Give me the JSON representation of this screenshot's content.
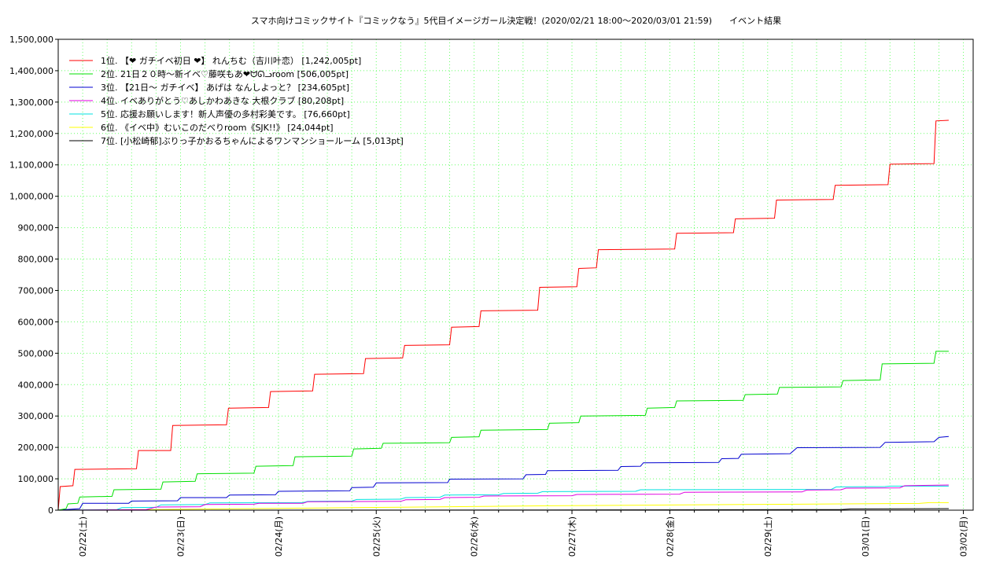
{
  "chart_data": {
    "type": "line",
    "title": "スマホ向けコミックサイト『コミックなう』5代目イメージガール決定戦！(2020/02/21 18:00〜2020/03/01 21:59)　　イベント結果",
    "xlabel": "",
    "ylabel": "",
    "x_range": [
      0,
      9.35
    ],
    "ylim": [
      0,
      1500000
    ],
    "y_ticks": [
      0,
      100000,
      200000,
      300000,
      400000,
      500000,
      600000,
      700000,
      800000,
      900000,
      1000000,
      1100000,
      1200000,
      1300000,
      1400000,
      1500000
    ],
    "y_tick_labels": [
      "0",
      "100,000",
      "200,000",
      "300,000",
      "400,000",
      "500,000",
      "600,000",
      "700,000",
      "800,000",
      "900,000",
      "1,000,000",
      "1,100,000",
      "1,200,000",
      "1,300,000",
      "1,400,000",
      "1,500,000"
    ],
    "x_ticks": [
      0.25,
      1.25,
      2.25,
      3.25,
      4.25,
      5.25,
      6.25,
      7.25,
      8.25,
      9.25
    ],
    "x_tick_labels": [
      "02/22(土)",
      "02/23(日)",
      "02/24(月)",
      "02/25(火)",
      "02/26(水)",
      "02/27(木)",
      "02/28(金)",
      "02/29(土)",
      "03/01(日)",
      "03/02(月)"
    ],
    "grid": true,
    "legend_position": "top-left",
    "series": [
      {
        "name": "1位. 【❤ ガチイベ初日 ❤】 れんちむ（吉川叶恋） [1,242,005pt]",
        "color": "#ff0000",
        "points": [
          [
            0,
            0
          ],
          [
            0.02,
            75000
          ],
          [
            0.15,
            78000
          ],
          [
            0.17,
            130000
          ],
          [
            0.8,
            132000
          ],
          [
            0.82,
            190000
          ],
          [
            1.15,
            190000
          ],
          [
            1.17,
            270000
          ],
          [
            1.72,
            272000
          ],
          [
            1.74,
            325000
          ],
          [
            2.15,
            327000
          ],
          [
            2.17,
            378000
          ],
          [
            2.6,
            380000
          ],
          [
            2.62,
            433000
          ],
          [
            3.12,
            435000
          ],
          [
            3.14,
            483000
          ],
          [
            3.52,
            485000
          ],
          [
            3.54,
            525000
          ],
          [
            4.0,
            527000
          ],
          [
            4.02,
            583000
          ],
          [
            4.3,
            585000
          ],
          [
            4.32,
            635000
          ],
          [
            4.9,
            637000
          ],
          [
            4.92,
            710000
          ],
          [
            5.3,
            712000
          ],
          [
            5.32,
            770000
          ],
          [
            5.5,
            772000
          ],
          [
            5.52,
            830000
          ],
          [
            6.3,
            832000
          ],
          [
            6.32,
            882000
          ],
          [
            6.9,
            884000
          ],
          [
            6.92,
            928000
          ],
          [
            7.32,
            930000
          ],
          [
            7.34,
            988000
          ],
          [
            7.92,
            990000
          ],
          [
            7.94,
            1035000
          ],
          [
            8.48,
            1037000
          ],
          [
            8.5,
            1102000
          ],
          [
            8.95,
            1104000
          ],
          [
            8.97,
            1240000
          ],
          [
            9.1,
            1242005
          ]
        ]
      },
      {
        "name": "2位. 21日２０時〜新イベ♡藤咲もあ❤ᗢᘏᓗroom [506,005pt]",
        "color": "#00e000",
        "points": [
          [
            0,
            0
          ],
          [
            0.08,
            5000
          ],
          [
            0.1,
            20000
          ],
          [
            0.2,
            22000
          ],
          [
            0.22,
            42000
          ],
          [
            0.55,
            44000
          ],
          [
            0.57,
            65000
          ],
          [
            1.05,
            67000
          ],
          [
            1.07,
            90000
          ],
          [
            1.4,
            92000
          ],
          [
            1.42,
            116000
          ],
          [
            2.0,
            118000
          ],
          [
            2.02,
            140000
          ],
          [
            2.4,
            142000
          ],
          [
            2.42,
            170000
          ],
          [
            3.0,
            172000
          ],
          [
            3.02,
            195000
          ],
          [
            3.3,
            197000
          ],
          [
            3.32,
            213000
          ],
          [
            4.0,
            215000
          ],
          [
            4.02,
            232000
          ],
          [
            4.3,
            234000
          ],
          [
            4.32,
            255000
          ],
          [
            5.0,
            257000
          ],
          [
            5.02,
            277000
          ],
          [
            5.32,
            279000
          ],
          [
            5.34,
            300000
          ],
          [
            6.0,
            302000
          ],
          [
            6.02,
            325000
          ],
          [
            6.3,
            327000
          ],
          [
            6.32,
            348000
          ],
          [
            7.0,
            350000
          ],
          [
            7.02,
            368000
          ],
          [
            7.35,
            370000
          ],
          [
            7.37,
            391000
          ],
          [
            8.0,
            393000
          ],
          [
            8.02,
            413000
          ],
          [
            8.4,
            415000
          ],
          [
            8.42,
            466000
          ],
          [
            8.95,
            468000
          ],
          [
            8.97,
            506005
          ],
          [
            9.1,
            506005
          ]
        ]
      },
      {
        "name": "3位. 【21日〜 ガチイベ】 あげは なんしよっと？ [234,605pt]",
        "color": "#0000d0",
        "points": [
          [
            0,
            0
          ],
          [
            0.22,
            5000
          ],
          [
            0.25,
            22000
          ],
          [
            0.72,
            22000
          ],
          [
            0.75,
            29000
          ],
          [
            1.22,
            30000
          ],
          [
            1.25,
            40000
          ],
          [
            1.72,
            40000
          ],
          [
            1.75,
            48000
          ],
          [
            2.22,
            49000
          ],
          [
            2.25,
            60000
          ],
          [
            2.98,
            62000
          ],
          [
            3.0,
            72000
          ],
          [
            3.22,
            73000
          ],
          [
            3.25,
            87000
          ],
          [
            3.98,
            88000
          ],
          [
            4.0,
            99000
          ],
          [
            4.75,
            100000
          ],
          [
            4.78,
            113000
          ],
          [
            4.98,
            114000
          ],
          [
            5.0,
            126000
          ],
          [
            5.72,
            127000
          ],
          [
            5.75,
            139000
          ],
          [
            5.95,
            140000
          ],
          [
            5.98,
            151000
          ],
          [
            6.75,
            152000
          ],
          [
            6.78,
            164000
          ],
          [
            6.95,
            165000
          ],
          [
            6.98,
            178000
          ],
          [
            7.48,
            180000
          ],
          [
            7.55,
            199000
          ],
          [
            8.4,
            200000
          ],
          [
            8.45,
            216000
          ],
          [
            8.95,
            218000
          ],
          [
            9.0,
            232000
          ],
          [
            9.1,
            234605
          ]
        ]
      },
      {
        "name": "4位. イベありがとう♡あしかわあきな 大根クラブ [80,208pt]",
        "color": "#e000e0",
        "points": [
          [
            0,
            0
          ],
          [
            0.9,
            2000
          ],
          [
            1.0,
            10000
          ],
          [
            1.45,
            11000
          ],
          [
            1.5,
            18000
          ],
          [
            2.0,
            19000
          ],
          [
            2.05,
            22000
          ],
          [
            2.5,
            22000
          ],
          [
            2.55,
            27000
          ],
          [
            3.5,
            28000
          ],
          [
            3.55,
            33000
          ],
          [
            3.9,
            34000
          ],
          [
            3.95,
            40000
          ],
          [
            4.3,
            41000
          ],
          [
            4.35,
            45000
          ],
          [
            5.25,
            46000
          ],
          [
            5.3,
            50000
          ],
          [
            6.35,
            51000
          ],
          [
            6.4,
            57000
          ],
          [
            7.6,
            58000
          ],
          [
            7.65,
            64000
          ],
          [
            8.0,
            65000
          ],
          [
            8.05,
            70000
          ],
          [
            8.6,
            71000
          ],
          [
            8.65,
            78000
          ],
          [
            9.1,
            80208
          ]
        ]
      },
      {
        "name": "5位. 応援お願いします！新人声優の多村彩美です。 [76,660pt]",
        "color": "#00e0e0",
        "points": [
          [
            0,
            0
          ],
          [
            0.6,
            2000
          ],
          [
            0.65,
            8000
          ],
          [
            1.0,
            9000
          ],
          [
            1.05,
            17000
          ],
          [
            1.5,
            18000
          ],
          [
            1.55,
            23000
          ],
          [
            2.5,
            24000
          ],
          [
            2.55,
            28000
          ],
          [
            3.0,
            29000
          ],
          [
            3.05,
            34000
          ],
          [
            3.5,
            35000
          ],
          [
            3.55,
            40000
          ],
          [
            3.9,
            41000
          ],
          [
            3.95,
            48000
          ],
          [
            4.5,
            49000
          ],
          [
            4.55,
            53000
          ],
          [
            4.9,
            54000
          ],
          [
            4.95,
            59000
          ],
          [
            5.9,
            60000
          ],
          [
            5.95,
            65000
          ],
          [
            7.9,
            66000
          ],
          [
            7.95,
            74000
          ],
          [
            8.45,
            75000
          ],
          [
            8.5,
            76660
          ],
          [
            9.1,
            76660
          ]
        ]
      },
      {
        "name": "6位. 《イベ中》むいこのだべりroom《SJK!!》 [24,044pt]",
        "color": "#ffff00",
        "points": [
          [
            0,
            0
          ],
          [
            1.0,
            2000
          ],
          [
            2.0,
            5000
          ],
          [
            3.0,
            8000
          ],
          [
            4.0,
            11000
          ],
          [
            5.0,
            14000
          ],
          [
            6.0,
            16000
          ],
          [
            7.0,
            18000
          ],
          [
            8.0,
            20000
          ],
          [
            8.8,
            21500
          ],
          [
            8.9,
            24000
          ],
          [
            9.1,
            24044
          ]
        ]
      },
      {
        "name": "7位. [小松崎郁]ぶりっ子かおるちゃんによるワンマンショールーム [5,013pt]",
        "color": "#000000",
        "points": [
          [
            0,
            0
          ],
          [
            2.5,
            300
          ],
          [
            5.0,
            800
          ],
          [
            7.0,
            1500
          ],
          [
            8.0,
            2000
          ],
          [
            8.1,
            4000
          ],
          [
            8.6,
            4500
          ],
          [
            9.1,
            5013
          ]
        ]
      }
    ]
  }
}
